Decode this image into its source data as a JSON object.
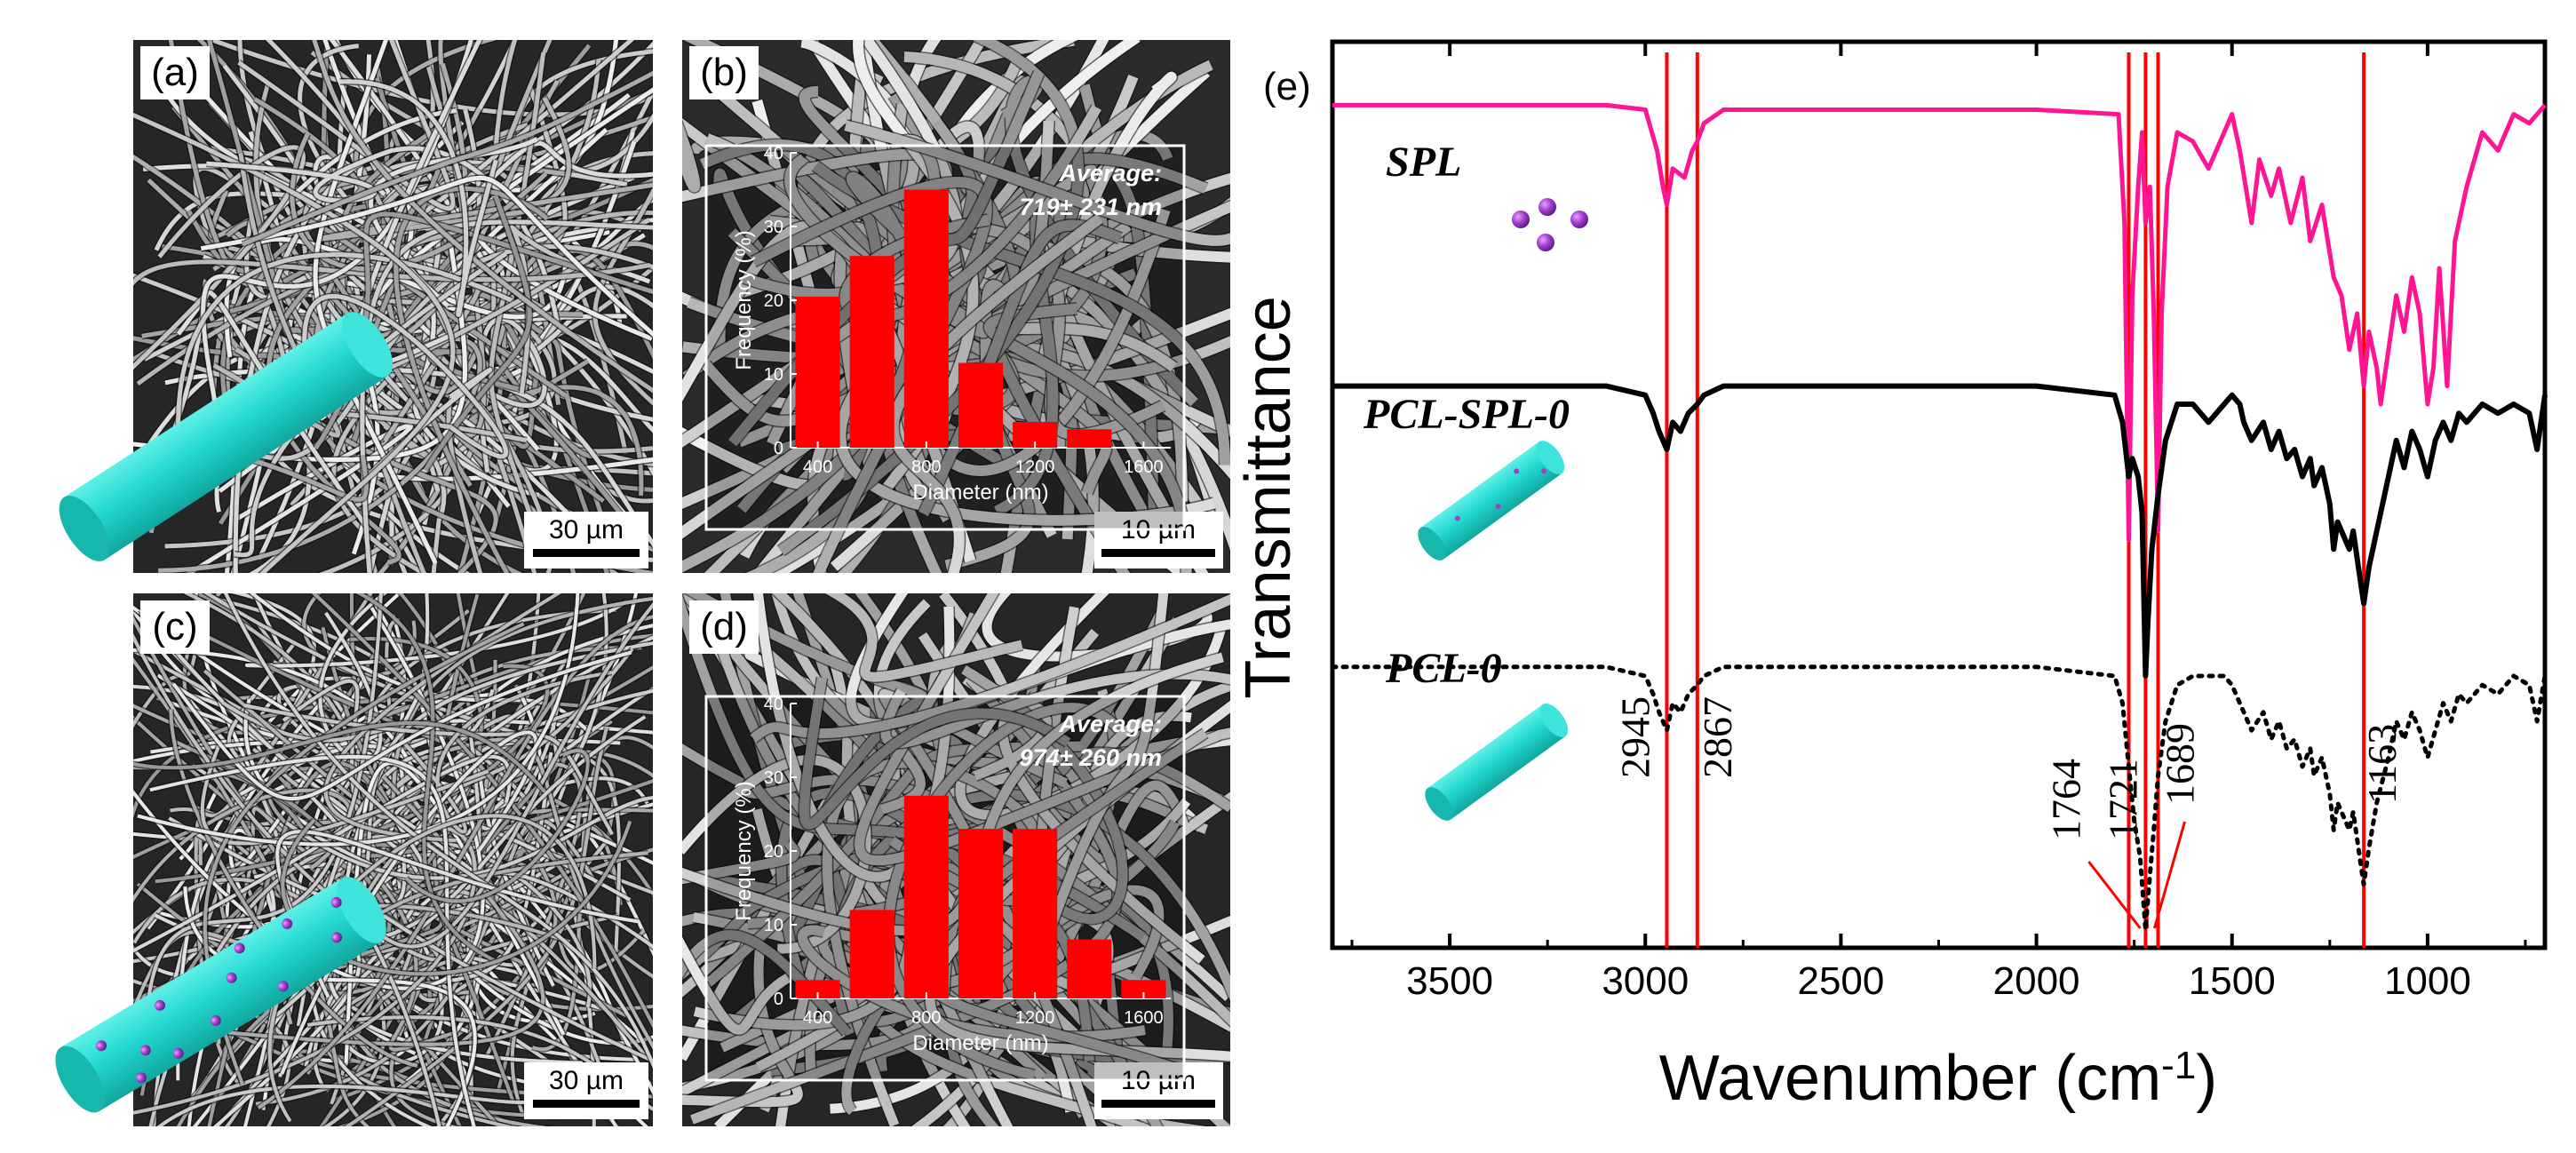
{
  "panels": {
    "a": {
      "label": "(a)",
      "scale_bar": "30 µm"
    },
    "b": {
      "label": "(b)",
      "scale_bar": "10 µm"
    },
    "c": {
      "label": "(c)",
      "scale_bar": "30 µm"
    },
    "d": {
      "label": "(d)",
      "scale_bar": "10 µm"
    },
    "e": {
      "label": "(e)"
    }
  },
  "colors": {
    "bar": "#ff0000",
    "spl_line": "#ff1493",
    "fiber": "#20d6cc",
    "fiber_dark": "#13a39b",
    "sphere": "#a040c0",
    "marker_line": "#ff0000"
  },
  "chart_data": [
    {
      "type": "bar",
      "panel": "b",
      "title": "",
      "xlabel": "Diameter (nm)",
      "ylabel": "Frequency (%)",
      "annotation_line1": "Average:",
      "annotation_line2": "719± 231 nm",
      "x_tick_labels": [
        "400",
        "800",
        "1200",
        "1600"
      ],
      "x_ticks": [
        400,
        800,
        1200,
        1600
      ],
      "xlim": [
        300,
        1700
      ],
      "y_tick_labels": [
        "0",
        "10",
        "20",
        "30",
        "40"
      ],
      "y_ticks": [
        0,
        10,
        20,
        30,
        40
      ],
      "ylim": [
        0,
        40
      ],
      "bin_centers": [
        400,
        600,
        800,
        1000,
        1200,
        1400
      ],
      "values": [
        20.5,
        26,
        35,
        11.5,
        3.5,
        2.5
      ]
    },
    {
      "type": "bar",
      "panel": "d",
      "title": "",
      "xlabel": "Diameter (nm)",
      "ylabel": "Frequency (%)",
      "annotation_line1": "Average:",
      "annotation_line2": "974± 260 nm",
      "x_tick_labels": [
        "400",
        "800",
        "1200",
        "1600"
      ],
      "x_ticks": [
        400,
        800,
        1200,
        1600
      ],
      "xlim": [
        300,
        1700
      ],
      "y_tick_labels": [
        "0",
        "10",
        "20",
        "30",
        "40"
      ],
      "y_ticks": [
        0,
        10,
        20,
        30,
        40
      ],
      "ylim": [
        0,
        40
      ],
      "bin_centers": [
        400,
        600,
        800,
        1000,
        1200,
        1400,
        1600
      ],
      "values": [
        2.5,
        12,
        27.5,
        23,
        23,
        8,
        2.5
      ]
    },
    {
      "type": "line",
      "panel": "e",
      "title": "",
      "xlabel_main": "Wavenumber (cm",
      "xlabel_sup": "-1",
      "xlabel_end": ")",
      "ylabel": "Transmittance",
      "xlim": [
        3800,
        700
      ],
      "x_tick_labels": [
        "3500",
        "3000",
        "2500",
        "2000",
        "1500",
        "1000"
      ],
      "x_ticks": [
        3500,
        3000,
        2500,
        2000,
        1500,
        1000
      ],
      "grid": false,
      "series": [
        {
          "name": "SPL",
          "style": "solid-pink",
          "baseline": 0.93,
          "x": [
            3800,
            3100,
            3000,
            2970,
            2955,
            2945,
            2930,
            2900,
            2880,
            2867,
            2850,
            2800,
            2000,
            1790,
            1775,
            1764,
            1755,
            1740,
            1730,
            1721,
            1710,
            1700,
            1689,
            1680,
            1665,
            1640,
            1600,
            1560,
            1500,
            1480,
            1450,
            1430,
            1400,
            1380,
            1350,
            1320,
            1300,
            1270,
            1240,
            1220,
            1200,
            1180,
            1163,
            1150,
            1130,
            1120,
            1100,
            1080,
            1060,
            1040,
            1020,
            1000,
            985,
            970,
            950,
            930,
            900,
            860,
            820,
            780,
            740,
            700
          ],
          "y": [
            0.93,
            0.93,
            0.925,
            0.88,
            0.84,
            0.82,
            0.86,
            0.85,
            0.88,
            0.89,
            0.91,
            0.925,
            0.925,
            0.92,
            0.8,
            0.45,
            0.72,
            0.84,
            0.9,
            0.8,
            0.84,
            0.7,
            0.46,
            0.7,
            0.84,
            0.9,
            0.89,
            0.86,
            0.92,
            0.88,
            0.8,
            0.87,
            0.83,
            0.86,
            0.8,
            0.85,
            0.78,
            0.82,
            0.74,
            0.72,
            0.66,
            0.7,
            0.62,
            0.68,
            0.64,
            0.6,
            0.66,
            0.72,
            0.68,
            0.74,
            0.7,
            0.6,
            0.64,
            0.75,
            0.62,
            0.78,
            0.84,
            0.9,
            0.88,
            0.92,
            0.91,
            0.93
          ]
        },
        {
          "name": "PCL-SPL-0",
          "style": "solid-black",
          "baseline": 0.62,
          "x": [
            3800,
            3100,
            3000,
            2980,
            2965,
            2945,
            2930,
            2910,
            2890,
            2867,
            2850,
            2800,
            2000,
            1800,
            1780,
            1764,
            1755,
            1740,
            1730,
            1721,
            1715,
            1705,
            1689,
            1670,
            1640,
            1600,
            1560,
            1520,
            1500,
            1480,
            1470,
            1450,
            1420,
            1400,
            1380,
            1360,
            1340,
            1320,
            1300,
            1290,
            1270,
            1250,
            1240,
            1230,
            1200,
            1190,
            1170,
            1163,
            1150,
            1130,
            1100,
            1080,
            1060,
            1040,
            1020,
            1000,
            980,
            960,
            940,
            920,
            900,
            860,
            820,
            780,
            740,
            720,
            700
          ],
          "y": [
            0.62,
            0.62,
            0.61,
            0.59,
            0.57,
            0.55,
            0.58,
            0.57,
            0.59,
            0.6,
            0.61,
            0.62,
            0.62,
            0.61,
            0.58,
            0.52,
            0.54,
            0.52,
            0.48,
            0.3,
            0.36,
            0.44,
            0.5,
            0.56,
            0.6,
            0.6,
            0.58,
            0.6,
            0.61,
            0.6,
            0.58,
            0.56,
            0.58,
            0.55,
            0.57,
            0.54,
            0.55,
            0.52,
            0.54,
            0.51,
            0.53,
            0.49,
            0.44,
            0.47,
            0.44,
            0.46,
            0.4,
            0.38,
            0.42,
            0.46,
            0.52,
            0.56,
            0.53,
            0.57,
            0.55,
            0.52,
            0.56,
            0.58,
            0.56,
            0.59,
            0.58,
            0.6,
            0.59,
            0.6,
            0.59,
            0.55,
            0.61
          ]
        },
        {
          "name": "PCL-0",
          "style": "dotted-black",
          "baseline": 0.31,
          "x": [
            3800,
            3100,
            3000,
            2980,
            2965,
            2945,
            2930,
            2910,
            2890,
            2867,
            2850,
            2800,
            2000,
            1800,
            1780,
            1764,
            1750,
            1735,
            1721,
            1710,
            1700,
            1689,
            1670,
            1640,
            1600,
            1520,
            1500,
            1480,
            1470,
            1450,
            1420,
            1400,
            1380,
            1360,
            1340,
            1320,
            1300,
            1290,
            1270,
            1250,
            1240,
            1230,
            1200,
            1190,
            1170,
            1163,
            1150,
            1130,
            1100,
            1080,
            1060,
            1040,
            1020,
            1000,
            980,
            960,
            940,
            920,
            900,
            860,
            820,
            780,
            740,
            720,
            700
          ],
          "y": [
            0.31,
            0.31,
            0.3,
            0.28,
            0.26,
            0.24,
            0.27,
            0.26,
            0.28,
            0.29,
            0.3,
            0.31,
            0.31,
            0.3,
            0.27,
            0.2,
            0.14,
            0.1,
            0.02,
            0.08,
            0.13,
            0.19,
            0.25,
            0.29,
            0.3,
            0.3,
            0.29,
            0.27,
            0.26,
            0.24,
            0.26,
            0.23,
            0.25,
            0.22,
            0.23,
            0.2,
            0.22,
            0.19,
            0.21,
            0.17,
            0.13,
            0.16,
            0.13,
            0.15,
            0.09,
            0.07,
            0.11,
            0.16,
            0.21,
            0.25,
            0.23,
            0.26,
            0.24,
            0.21,
            0.24,
            0.27,
            0.25,
            0.28,
            0.27,
            0.29,
            0.28,
            0.3,
            0.29,
            0.25,
            0.3
          ]
        }
      ],
      "series_labels": [
        "SPL",
        "PCL-SPL-0",
        "PCL-0"
      ],
      "reference_lines": [
        2945,
        2867,
        1764,
        1721,
        1689,
        1163
      ],
      "reference_labels": [
        "2945",
        "2867",
        "1764",
        "1721",
        "1689",
        "1163"
      ]
    }
  ]
}
